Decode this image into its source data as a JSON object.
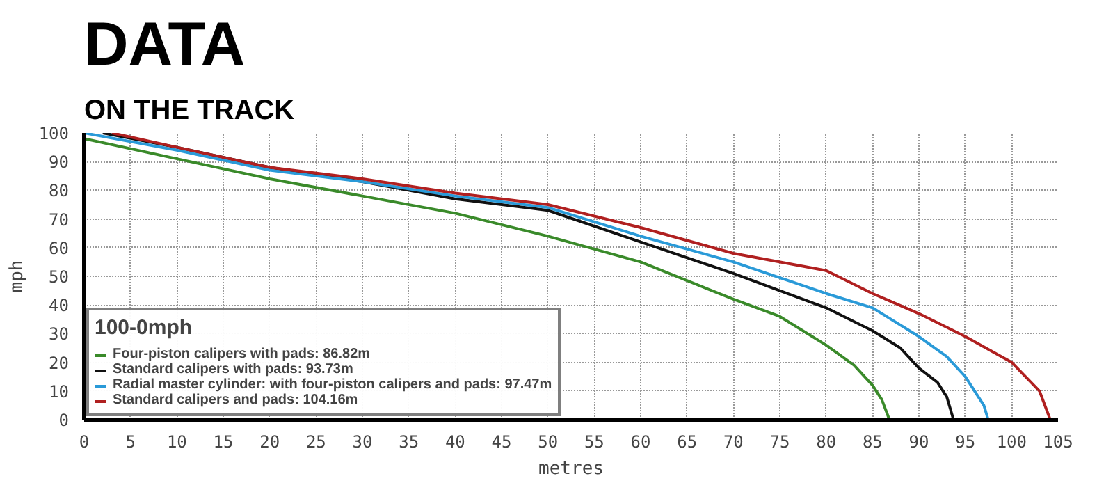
{
  "chart_data": {
    "type": "line",
    "title": "DATA",
    "subtitle": "ON THE TRACK",
    "xlabel": "metres",
    "ylabel": "mph",
    "legend_title": "100-0mph",
    "xlim": [
      0,
      105
    ],
    "ylim": [
      0,
      100
    ],
    "xticks": [
      0,
      5,
      10,
      15,
      20,
      25,
      30,
      35,
      40,
      45,
      50,
      55,
      60,
      65,
      70,
      75,
      80,
      85,
      90,
      95,
      100,
      105
    ],
    "yticks": [
      0,
      10,
      20,
      30,
      40,
      50,
      60,
      70,
      80,
      90,
      100
    ],
    "grid": true,
    "legend": "bottom left",
    "marker": "none",
    "line_style": "solid",
    "series": [
      {
        "name": "Four-piston calipers with pads: 86.82m",
        "color": "#3a8a2a",
        "x": [
          0,
          10,
          20,
          30,
          40,
          50,
          60,
          70,
          75,
          80,
          83,
          85,
          86,
          86.82
        ],
        "values": [
          98,
          91,
          84,
          78,
          72,
          64,
          55,
          42,
          36,
          26,
          19,
          12,
          7,
          0
        ]
      },
      {
        "name": "Standard calipers with pads: 93.73m",
        "color": "#111111",
        "x": [
          2,
          10,
          20,
          30,
          40,
          50,
          60,
          70,
          80,
          85,
          88,
          90,
          92,
          93,
          93.73
        ],
        "values": [
          100,
          95,
          88,
          83,
          77,
          73,
          62,
          51,
          39,
          31,
          25,
          18,
          13,
          8,
          0
        ]
      },
      {
        "name": "Radial master cylinder: with four-piston calipers and pads: 97.47m",
        "color": "#2a9ad8",
        "x": [
          0,
          10,
          20,
          30,
          40,
          50,
          60,
          70,
          80,
          85,
          90,
          93,
          95,
          97,
          97.47
        ],
        "values": [
          100,
          94,
          87,
          83,
          78,
          74,
          64,
          55,
          44,
          39,
          29,
          22,
          15,
          5,
          0
        ]
      },
      {
        "name": "Standard calipers and pads: 104.16m",
        "color": "#b02020",
        "x": [
          3,
          10,
          20,
          30,
          40,
          50,
          60,
          70,
          80,
          85,
          90,
          95,
          100,
          103,
          104.16
        ],
        "values": [
          100,
          95,
          88,
          84,
          79,
          75,
          67,
          58,
          52,
          44,
          37,
          29,
          20,
          10,
          0
        ]
      }
    ]
  }
}
